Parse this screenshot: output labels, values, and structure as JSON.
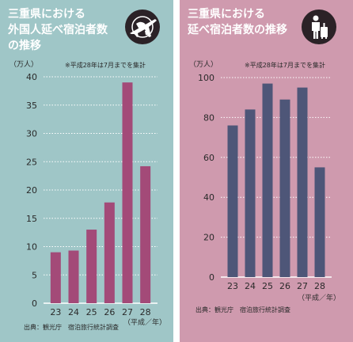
{
  "left": {
    "title": "三重県における\n外国人延べ宿泊者数\nの推移",
    "icon": "airplane-globe-icon",
    "unit": "（万人）",
    "note": "※平成28年は7月までを集計",
    "source": "出典：観光庁　宿泊旅行統計調査",
    "colors": {
      "background": "#9fc6c7",
      "bar": "#a34a78"
    }
  },
  "right": {
    "title": "三重県における\n延べ宿泊者数の推移",
    "icon": "traveler-with-suitcase-icon",
    "unit": "（万人）",
    "note": "※平成28年は7月までを集計",
    "source": "出典：観光庁　宿泊旅行統計調査",
    "colors": {
      "background": "#cf9aae",
      "bar": "#4e5678"
    }
  },
  "chart_data": [
    {
      "type": "bar",
      "categories": [
        "23",
        "24",
        "25",
        "26",
        "27",
        "28"
      ],
      "values": [
        9,
        9.3,
        13,
        17.8,
        39,
        24.2
      ],
      "xlabel": "（平成／年）",
      "ylabel": "（万人）",
      "ylim": [
        0,
        40
      ],
      "yticks": [
        0,
        5,
        10,
        15,
        20,
        25,
        30,
        35,
        40
      ],
      "grid": true
    },
    {
      "type": "bar",
      "categories": [
        "23",
        "24",
        "25",
        "26",
        "27",
        "28"
      ],
      "values": [
        76,
        84,
        97,
        89,
        95,
        55
      ],
      "xlabel": "（平成／年）",
      "ylabel": "（万人）",
      "ylim": [
        0,
        100
      ],
      "yticks": [
        0,
        20,
        40,
        60,
        80,
        100
      ],
      "grid": true
    }
  ]
}
